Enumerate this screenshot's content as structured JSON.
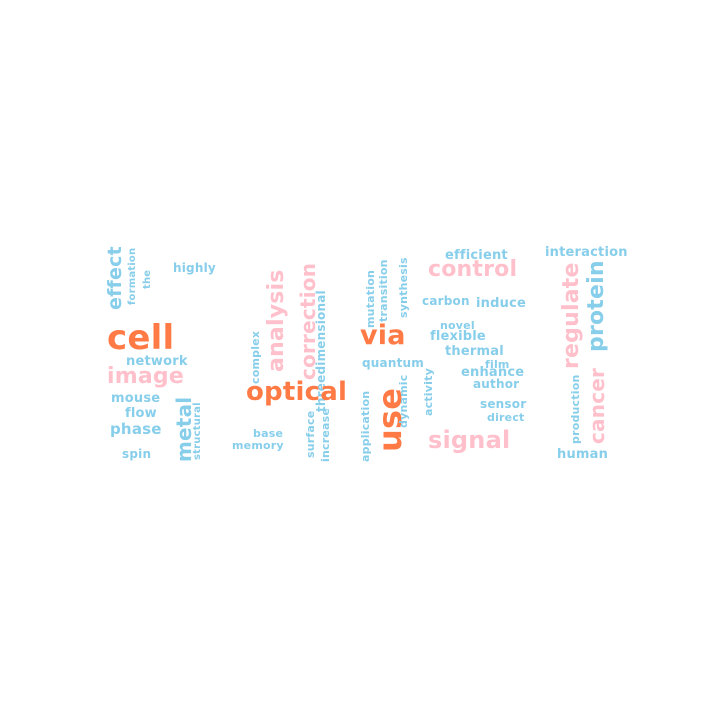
{
  "colors": {
    "orange": "#ff7a45",
    "pink": "#ffc0cb",
    "blue": "#87ceeb"
  },
  "words": [
    {
      "id": "effect",
      "text": "effect",
      "color": "blue",
      "vertical": true
    },
    {
      "id": "formation",
      "text": "formation",
      "color": "blue",
      "vertical": true
    },
    {
      "id": "the",
      "text": "the",
      "color": "blue",
      "vertical": true
    },
    {
      "id": "highly",
      "text": "highly",
      "color": "blue",
      "vertical": false
    },
    {
      "id": "cell",
      "text": "cell",
      "color": "orange",
      "vertical": false
    },
    {
      "id": "network",
      "text": "network",
      "color": "blue",
      "vertical": false
    },
    {
      "id": "image",
      "text": "image",
      "color": "pink",
      "vertical": false
    },
    {
      "id": "mouse",
      "text": "mouse",
      "color": "blue",
      "vertical": false
    },
    {
      "id": "flow",
      "text": "flow",
      "color": "blue",
      "vertical": false
    },
    {
      "id": "phase",
      "text": "phase",
      "color": "blue",
      "vertical": false
    },
    {
      "id": "spin",
      "text": "spin",
      "color": "blue",
      "vertical": false
    },
    {
      "id": "metal",
      "text": "metal",
      "color": "blue",
      "vertical": true
    },
    {
      "id": "structural",
      "text": "structural",
      "color": "blue",
      "vertical": true
    },
    {
      "id": "analysis",
      "text": "analysis",
      "color": "pink",
      "vertical": true
    },
    {
      "id": "complex",
      "text": "complex",
      "color": "blue",
      "vertical": true
    },
    {
      "id": "correction",
      "text": "correction",
      "color": "pink",
      "vertical": true
    },
    {
      "id": "threedimensional",
      "text": "threedimensional",
      "color": "blue",
      "vertical": true
    },
    {
      "id": "optical",
      "text": "optical",
      "color": "orange",
      "vertical": false
    },
    {
      "id": "base",
      "text": "base",
      "color": "blue",
      "vertical": false
    },
    {
      "id": "memory",
      "text": "memory",
      "color": "blue",
      "vertical": false
    },
    {
      "id": "surface",
      "text": "surface",
      "color": "blue",
      "vertical": true
    },
    {
      "id": "increase",
      "text": "increase",
      "color": "blue",
      "vertical": true
    },
    {
      "id": "mutation",
      "text": "mutation",
      "color": "blue",
      "vertical": true
    },
    {
      "id": "transition",
      "text": "transition",
      "color": "blue",
      "vertical": true
    },
    {
      "id": "synthesis",
      "text": "synthesis",
      "color": "blue",
      "vertical": true
    },
    {
      "id": "via",
      "text": "via",
      "color": "orange",
      "vertical": false
    },
    {
      "id": "quantum",
      "text": "quantum",
      "color": "blue",
      "vertical": false
    },
    {
      "id": "use",
      "text": "use",
      "color": "orange",
      "vertical": true
    },
    {
      "id": "dynamic",
      "text": "dynamic",
      "color": "blue",
      "vertical": true
    },
    {
      "id": "application",
      "text": "application",
      "color": "blue",
      "vertical": true
    },
    {
      "id": "activity",
      "text": "activity",
      "color": "blue",
      "vertical": true
    },
    {
      "id": "efficient",
      "text": "efficient",
      "color": "blue",
      "vertical": false
    },
    {
      "id": "control",
      "text": "control",
      "color": "pink",
      "vertical": false
    },
    {
      "id": "carbon",
      "text": "carbon",
      "color": "blue",
      "vertical": false
    },
    {
      "id": "induce",
      "text": "induce",
      "color": "blue",
      "vertical": false
    },
    {
      "id": "novel",
      "text": "novel",
      "color": "blue",
      "vertical": false
    },
    {
      "id": "flexible",
      "text": "flexible",
      "color": "blue",
      "vertical": false
    },
    {
      "id": "thermal",
      "text": "thermal",
      "color": "blue",
      "vertical": false
    },
    {
      "id": "film",
      "text": "film",
      "color": "blue",
      "vertical": false
    },
    {
      "id": "enhance",
      "text": "enhance",
      "color": "blue",
      "vertical": false
    },
    {
      "id": "author",
      "text": "author",
      "color": "blue",
      "vertical": false
    },
    {
      "id": "sensor",
      "text": "sensor",
      "color": "blue",
      "vertical": false
    },
    {
      "id": "direct",
      "text": "direct",
      "color": "blue",
      "vertical": false
    },
    {
      "id": "signal",
      "text": "signal",
      "color": "pink",
      "vertical": false
    },
    {
      "id": "interaction",
      "text": "interaction",
      "color": "blue",
      "vertical": false
    },
    {
      "id": "regulate",
      "text": "regulate",
      "color": "pink",
      "vertical": true
    },
    {
      "id": "protein",
      "text": "protein",
      "color": "blue",
      "vertical": true
    },
    {
      "id": "production",
      "text": "production",
      "color": "blue",
      "vertical": true
    },
    {
      "id": "cancer",
      "text": "cancer",
      "color": "pink",
      "vertical": true
    },
    {
      "id": "human",
      "text": "human",
      "color": "blue",
      "vertical": false
    }
  ]
}
